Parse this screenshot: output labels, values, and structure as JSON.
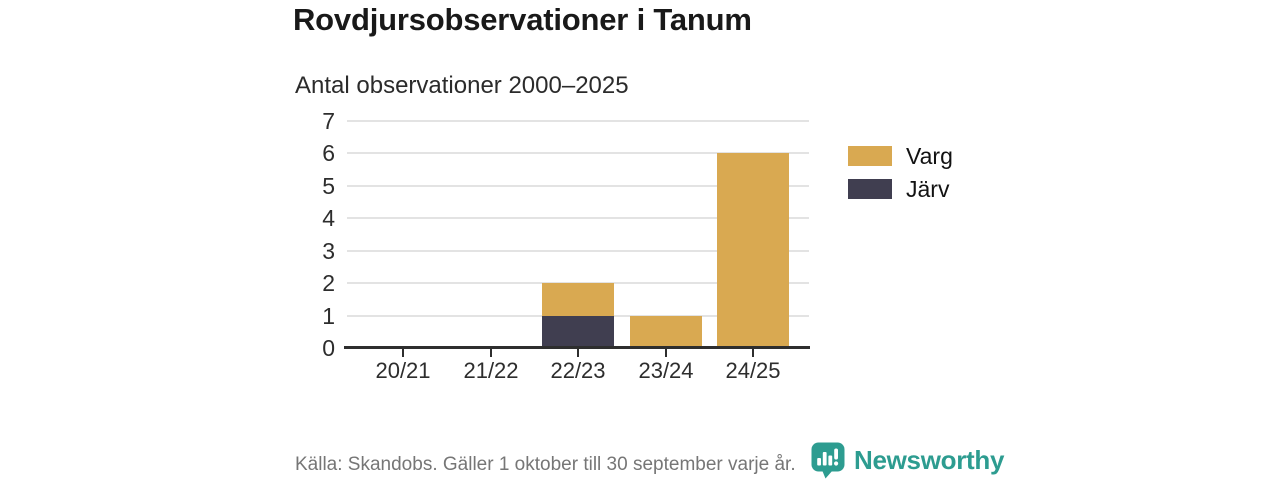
{
  "chart_data": {
    "type": "bar",
    "stacked": true,
    "title": "Rovdjursobservationer i Tanum",
    "subtitle": "Antal observationer 2000–2025",
    "categories": [
      "20/21",
      "21/22",
      "22/23",
      "23/24",
      "24/25"
    ],
    "series": [
      {
        "name": "Varg",
        "color": "#D9A951",
        "values": [
          0,
          0,
          1,
          1,
          6
        ]
      },
      {
        "name": "Järv",
        "color": "#403E50",
        "values": [
          0,
          0,
          1,
          0,
          0
        ]
      }
    ],
    "xlabel": "",
    "ylabel": "",
    "ylim": [
      0,
      7
    ],
    "yticks": [
      0,
      1,
      2,
      3,
      4,
      5,
      6,
      7
    ],
    "grid": true,
    "gridline_color": "#e3e3e3",
    "axis_color": "#2e2e2e",
    "legend_position": "right"
  },
  "footer": {
    "source": "Källa: Skandobs. Gäller 1 oktober till 30 september varje år.",
    "brand": "Newsworthy",
    "brand_color": "#2D9C90",
    "logo_icon": "chart-speech-bubble-icon"
  }
}
